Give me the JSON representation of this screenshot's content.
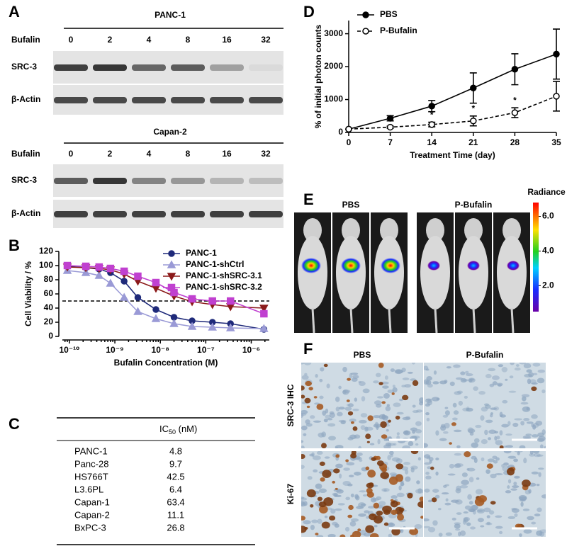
{
  "panel_labels": [
    "A",
    "B",
    "C",
    "D",
    "E",
    "F"
  ],
  "blots": [
    {
      "title": "PANC-1",
      "dose_label": "Bufalin",
      "doses": [
        0,
        2,
        4,
        8,
        16,
        32
      ],
      "rows": [
        "SRC-3",
        "β-Actin"
      ]
    },
    {
      "title": "Capan-2",
      "dose_label": "Bufalin",
      "doses": [
        0,
        2,
        4,
        8,
        16,
        32
      ],
      "rows": [
        "SRC-3",
        "β-Actin"
      ]
    }
  ],
  "chart_data": [
    {
      "type": "line",
      "x_label": "Bufalin Concentration (M)",
      "y_label": "Cell Viability / %",
      "xscale": "log",
      "xlim": [
        7e-11,
        2.5e-06
      ],
      "xticks": [
        {
          "value": 1e-10,
          "label": "10⁻¹⁰"
        },
        {
          "value": 1e-09,
          "label": "10⁻⁹"
        },
        {
          "value": 1e-08,
          "label": "10⁻⁸"
        },
        {
          "value": 1e-07,
          "label": "10⁻⁷"
        },
        {
          "value": 1e-06,
          "label": "10⁻⁶"
        }
      ],
      "ylim": [
        0,
        120
      ],
      "yticks": [
        0,
        20,
        40,
        60,
        80,
        100,
        120
      ],
      "reference_line": 50,
      "legend": "upper right",
      "x": [
        9e-11,
        2.3e-10,
        4.5e-10,
        8e-10,
        1.6e-09,
        3.2e-09,
        8e-09,
        2e-08,
        5e-08,
        1.4e-07,
        3.5e-07,
        1.9e-06
      ],
      "series": [
        {
          "name": "PANC-1",
          "color": "#1f2a7a",
          "marker": "circle",
          "values": [
            99,
            97,
            95,
            90,
            78,
            55,
            38,
            27,
            22,
            20,
            18,
            10
          ]
        },
        {
          "name": "PANC-1-shCtrl",
          "color": "#9a9ad6",
          "marker": "triangle-up",
          "values": [
            93,
            90,
            86,
            75,
            55,
            35,
            25,
            18,
            14,
            13,
            12,
            11
          ]
        },
        {
          "name": "PANC-1-shSRC-3.1",
          "color": "#8b1a1a",
          "marker": "triangle-down",
          "values": [
            98,
            97,
            96,
            94,
            88,
            78,
            68,
            57,
            49,
            45,
            42,
            40
          ]
        },
        {
          "name": "PANC-1-shSRC-3.2",
          "color": "#c040d0",
          "marker": "square",
          "values": [
            100,
            99,
            98,
            96,
            92,
            85,
            76,
            62,
            53,
            50,
            50,
            32
          ]
        }
      ]
    },
    {
      "type": "line",
      "x_label": "Treatment Time (day)",
      "y_label": "% of initial photon counts",
      "x": [
        0,
        7,
        14,
        21,
        28,
        35
      ],
      "xlim": [
        0,
        35
      ],
      "xticks": [
        0,
        7,
        14,
        21,
        28,
        35
      ],
      "ylim": [
        0,
        3400
      ],
      "yticks": [
        0,
        1000,
        2000,
        3000
      ],
      "legend": "upper left",
      "series": [
        {
          "name": "PBS",
          "color": "#000000",
          "line_style": "solid",
          "marker": "circle",
          "marker_fill": "filled",
          "values": [
            100,
            430,
            800,
            1350,
            1920,
            2380
          ],
          "errors": [
            0,
            80,
            170,
            460,
            470,
            760
          ]
        },
        {
          "name": "P-Bufalin",
          "color": "#000000",
          "line_style": "dashed",
          "marker": "circle",
          "marker_fill": "open",
          "values": [
            100,
            160,
            240,
            350,
            600,
            1100
          ],
          "errors": [
            0,
            30,
            70,
            150,
            150,
            450
          ]
        }
      ],
      "annotations": [
        {
          "text": "*",
          "x": 14
        },
        {
          "text": "*",
          "x": 21
        },
        {
          "text": "*",
          "x": 28
        }
      ]
    }
  ],
  "table": {
    "header": {
      "text": "IC",
      "subscript": "50",
      "suffix": " (nM)"
    },
    "rows": [
      [
        "PANC-1",
        4.8
      ],
      [
        "Panc-28",
        9.7
      ],
      [
        "HS766T",
        42.5
      ],
      [
        "L3.6PL",
        6.4
      ],
      [
        "Capan-1",
        63.4
      ],
      [
        "Capan-2",
        11.1
      ],
      [
        "BxPC-3",
        26.8
      ]
    ]
  },
  "imaging": {
    "groups": [
      "PBS",
      "P-Bufalin"
    ],
    "colorbar": {
      "title": "Radiance",
      "lim": [
        0.5,
        6.8
      ],
      "ticks": [
        {
          "value": 2,
          "label": "2.0"
        },
        {
          "value": 4,
          "label": "4.0"
        },
        {
          "value": 6,
          "label": "6.0"
        }
      ]
    }
  },
  "ihc": {
    "columns": [
      "PBS",
      "P-Bufalin"
    ],
    "rows": [
      "SRC-3 IHC",
      "Ki-67"
    ]
  }
}
